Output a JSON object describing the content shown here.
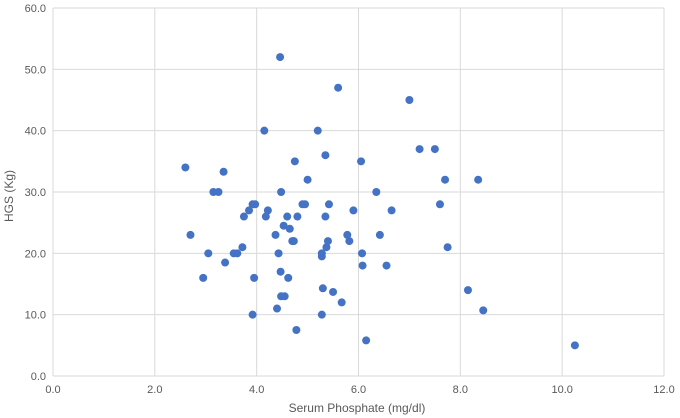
{
  "chart_data": {
    "type": "scatter",
    "xlabel": "Serum Phosphate (mg/dl)",
    "ylabel": "HGS  (Kg)",
    "xlim": [
      0,
      12
    ],
    "ylim": [
      0,
      60
    ],
    "x_ticks": [
      "0.0",
      "2.0",
      "4.0",
      "6.0",
      "8.0",
      "10.0",
      "12.0"
    ],
    "y_ticks": [
      "0.0",
      "10.0",
      "20.0",
      "30.0",
      "40.0",
      "50.0",
      "60.0"
    ],
    "grid": true,
    "legend": "none",
    "marker_color": "#4472C4",
    "points": [
      [
        2.6,
        34
      ],
      [
        2.7,
        23
      ],
      [
        2.95,
        16
      ],
      [
        3.05,
        20
      ],
      [
        3.15,
        30
      ],
      [
        3.25,
        30
      ],
      [
        3.35,
        33.3
      ],
      [
        3.38,
        18.5
      ],
      [
        3.55,
        20
      ],
      [
        3.62,
        20
      ],
      [
        3.72,
        21
      ],
      [
        3.75,
        26
      ],
      [
        3.85,
        27
      ],
      [
        3.92,
        28
      ],
      [
        3.97,
        28
      ],
      [
        3.92,
        10
      ],
      [
        3.95,
        16
      ],
      [
        4.15,
        40
      ],
      [
        4.18,
        26
      ],
      [
        4.22,
        27
      ],
      [
        4.37,
        23
      ],
      [
        4.4,
        11
      ],
      [
        4.43,
        20
      ],
      [
        4.46,
        52
      ],
      [
        4.48,
        30
      ],
      [
        4.47,
        17
      ],
      [
        4.48,
        13
      ],
      [
        4.53,
        24.5
      ],
      [
        4.55,
        13
      ],
      [
        4.6,
        26
      ],
      [
        4.62,
        16
      ],
      [
        4.65,
        24
      ],
      [
        4.7,
        22
      ],
      [
        4.73,
        22
      ],
      [
        4.75,
        35
      ],
      [
        4.78,
        7.5
      ],
      [
        4.8,
        26
      ],
      [
        4.9,
        28
      ],
      [
        4.95,
        28
      ],
      [
        5.0,
        32
      ],
      [
        5.2,
        40
      ],
      [
        5.28,
        19.5
      ],
      [
        5.28,
        20
      ],
      [
        5.3,
        14.3
      ],
      [
        5.28,
        10
      ],
      [
        5.35,
        26
      ],
      [
        5.35,
        36
      ],
      [
        5.37,
        21
      ],
      [
        5.4,
        22
      ],
      [
        5.42,
        28
      ],
      [
        5.5,
        13.7
      ],
      [
        5.6,
        47
      ],
      [
        5.67,
        12
      ],
      [
        5.78,
        23
      ],
      [
        5.82,
        22
      ],
      [
        5.9,
        27
      ],
      [
        6.05,
        35
      ],
      [
        6.07,
        20
      ],
      [
        6.08,
        18
      ],
      [
        6.15,
        5.8
      ],
      [
        6.35,
        30
      ],
      [
        6.42,
        23
      ],
      [
        6.55,
        18
      ],
      [
        6.65,
        27
      ],
      [
        7.0,
        45
      ],
      [
        7.2,
        37
      ],
      [
        7.5,
        37
      ],
      [
        7.6,
        28
      ],
      [
        7.7,
        32
      ],
      [
        7.75,
        21
      ],
      [
        8.15,
        14
      ],
      [
        8.35,
        32
      ],
      [
        8.45,
        10.7
      ],
      [
        10.25,
        5
      ]
    ]
  }
}
